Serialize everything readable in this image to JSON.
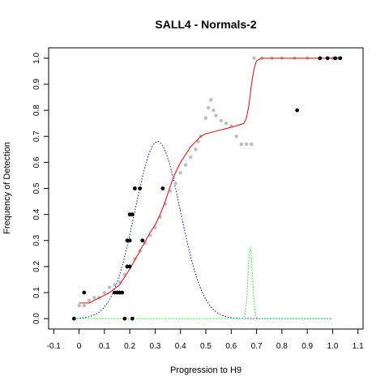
{
  "chart_data": {
    "type": "scatter",
    "title": "SALL4 - Normals-2",
    "xlabel": "Progression to H9",
    "ylabel": "Frequency of Detection",
    "xlim": [
      -0.12,
      1.12
    ],
    "ylim": [
      -0.04,
      1.04
    ],
    "x_ticks": [
      "-0.1",
      "0",
      "0.1",
      "0.2",
      "0.3",
      "0.4",
      "0.5",
      "0.6",
      "0.7",
      "0.8",
      "0.9",
      "1.0",
      "1.1"
    ],
    "y_ticks": [
      "0.0",
      "0.1",
      "0.2",
      "0.3",
      "0.4",
      "0.5",
      "0.6",
      "0.7",
      "0.8",
      "0.9",
      "1.0"
    ],
    "grid": false,
    "colors": {
      "samples": "#000000",
      "smoothed": "#bebebe",
      "fit": "#ff0000",
      "density_wide": "#0000ff",
      "density_narrow": "#00ff00"
    },
    "samples": [
      {
        "x": -0.02,
        "y": 0.0
      },
      {
        "x": 0.02,
        "y": 0.1
      },
      {
        "x": 0.14,
        "y": 0.1
      },
      {
        "x": 0.15,
        "y": 0.1
      },
      {
        "x": 0.16,
        "y": 0.1
      },
      {
        "x": 0.17,
        "y": 0.1
      },
      {
        "x": 0.18,
        "y": 0.0
      },
      {
        "x": 0.19,
        "y": 0.2
      },
      {
        "x": 0.19,
        "y": 0.3
      },
      {
        "x": 0.2,
        "y": 0.4
      },
      {
        "x": 0.2,
        "y": 0.3
      },
      {
        "x": 0.2,
        "y": 0.2
      },
      {
        "x": 0.21,
        "y": 0.4
      },
      {
        "x": 0.21,
        "y": 0.0
      },
      {
        "x": 0.22,
        "y": 0.5
      },
      {
        "x": 0.24,
        "y": 0.5
      },
      {
        "x": 0.25,
        "y": 0.3
      },
      {
        "x": 0.33,
        "y": 0.5
      },
      {
        "x": 0.86,
        "y": 0.8
      },
      {
        "x": 0.95,
        "y": 1.0
      },
      {
        "x": 0.98,
        "y": 1.0
      },
      {
        "x": 1.01,
        "y": 1.0
      },
      {
        "x": 1.03,
        "y": 1.0
      }
    ],
    "smoothed_points": [
      [
        0.0,
        0.05
      ],
      [
        0.02,
        0.05
      ],
      [
        0.04,
        0.07
      ],
      [
        0.06,
        0.08
      ],
      [
        0.08,
        0.08
      ],
      [
        0.1,
        0.1
      ],
      [
        0.12,
        0.12
      ],
      [
        0.14,
        0.13
      ],
      [
        0.16,
        0.14
      ],
      [
        0.18,
        0.17
      ],
      [
        0.2,
        0.2
      ],
      [
        0.22,
        0.23
      ],
      [
        0.24,
        0.26
      ],
      [
        0.26,
        0.29
      ],
      [
        0.28,
        0.32
      ],
      [
        0.3,
        0.35
      ],
      [
        0.32,
        0.39
      ],
      [
        0.34,
        0.44
      ],
      [
        0.36,
        0.49
      ],
      [
        0.38,
        0.52
      ],
      [
        0.4,
        0.56
      ],
      [
        0.42,
        0.59
      ],
      [
        0.44,
        0.62
      ],
      [
        0.46,
        0.65
      ],
      [
        0.47,
        0.68
      ],
      [
        0.48,
        0.7
      ],
      [
        0.5,
        0.77
      ],
      [
        0.51,
        0.81
      ],
      [
        0.52,
        0.84
      ],
      [
        0.53,
        0.8
      ],
      [
        0.54,
        0.78
      ],
      [
        0.56,
        0.76
      ],
      [
        0.58,
        0.75
      ],
      [
        0.6,
        0.74
      ],
      [
        0.62,
        0.7
      ],
      [
        0.64,
        0.67
      ],
      [
        0.66,
        0.67
      ],
      [
        0.68,
        0.67
      ],
      [
        0.69,
        1.0
      ],
      [
        0.72,
        1.0
      ],
      [
        0.76,
        1.0
      ],
      [
        0.8,
        1.0
      ],
      [
        0.85,
        1.0
      ],
      [
        0.9,
        1.0
      ],
      [
        0.95,
        1.0
      ],
      [
        1.0,
        1.0
      ],
      [
        1.02,
        1.0
      ]
    ],
    "fit_curve": [
      [
        0.0,
        0.06
      ],
      [
        0.04,
        0.06
      ],
      [
        0.08,
        0.08
      ],
      [
        0.12,
        0.1
      ],
      [
        0.16,
        0.13
      ],
      [
        0.2,
        0.19
      ],
      [
        0.24,
        0.26
      ],
      [
        0.28,
        0.33
      ],
      [
        0.3,
        0.36
      ],
      [
        0.32,
        0.4
      ],
      [
        0.34,
        0.45
      ],
      [
        0.36,
        0.51
      ],
      [
        0.38,
        0.56
      ],
      [
        0.4,
        0.6
      ],
      [
        0.42,
        0.63
      ],
      [
        0.44,
        0.66
      ],
      [
        0.46,
        0.68
      ],
      [
        0.48,
        0.7
      ],
      [
        0.5,
        0.71
      ],
      [
        0.54,
        0.72
      ],
      [
        0.58,
        0.73
      ],
      [
        0.62,
        0.74
      ],
      [
        0.65,
        0.75
      ],
      [
        0.66,
        0.77
      ],
      [
        0.67,
        0.82
      ],
      [
        0.68,
        0.9
      ],
      [
        0.69,
        0.96
      ],
      [
        0.7,
        0.99
      ],
      [
        0.72,
        1.0
      ],
      [
        0.8,
        1.0
      ],
      [
        0.9,
        1.0
      ],
      [
        1.02,
        1.0
      ]
    ],
    "density_wide": {
      "mean": 0.31,
      "sd": 0.09,
      "peak": 0.68,
      "range": [
        -0.02,
        1.0
      ]
    },
    "density_narrow": {
      "mean": 0.675,
      "sd": 0.009,
      "peak": 0.27,
      "range": [
        -0.02,
        1.0
      ]
    }
  }
}
